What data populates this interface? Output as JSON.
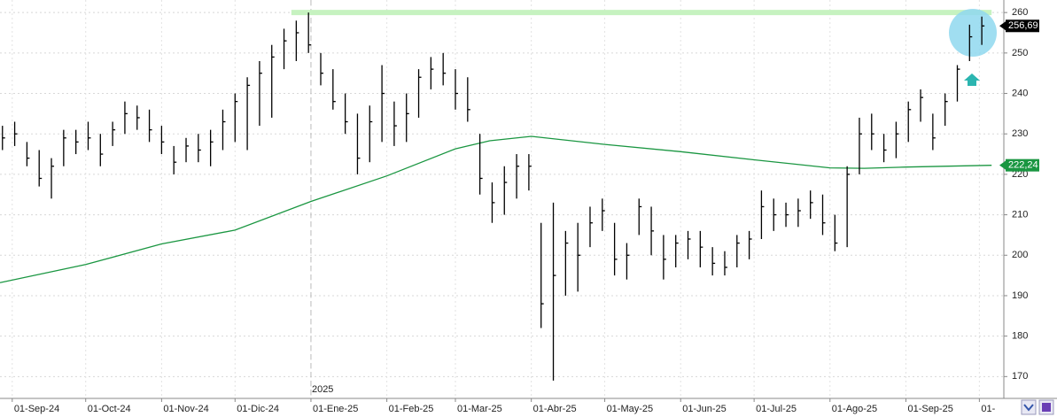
{
  "chart_data": {
    "type": "ohlc",
    "x": [
      "2024-08-28",
      "2024-09-02",
      "2024-09-07",
      "2024-09-12",
      "2024-09-17",
      "2024-09-22",
      "2024-09-27",
      "2024-10-02",
      "2024-10-07",
      "2024-10-12",
      "2024-10-17",
      "2024-10-22",
      "2024-10-27",
      "2024-11-01",
      "2024-11-06",
      "2024-11-11",
      "2024-11-16",
      "2024-11-21",
      "2024-11-26",
      "2024-12-01",
      "2024-12-06",
      "2024-12-11",
      "2024-12-16",
      "2024-12-21",
      "2024-12-26",
      "2024-12-31",
      "2025-01-05",
      "2025-01-10",
      "2025-01-15",
      "2025-01-20",
      "2025-01-25",
      "2025-01-30",
      "2025-02-04",
      "2025-02-09",
      "2025-02-14",
      "2025-02-19",
      "2025-02-24",
      "2025-03-01",
      "2025-03-06",
      "2025-03-11",
      "2025-03-16",
      "2025-03-21",
      "2025-03-26",
      "2025-03-31",
      "2025-04-05",
      "2025-04-10",
      "2025-04-15",
      "2025-04-20",
      "2025-04-25",
      "2025-04-30",
      "2025-05-05",
      "2025-05-10",
      "2025-05-15",
      "2025-05-20",
      "2025-05-25",
      "2025-05-30",
      "2025-06-04",
      "2025-06-09",
      "2025-06-14",
      "2025-06-19",
      "2025-06-24",
      "2025-06-29",
      "2025-07-04",
      "2025-07-09",
      "2025-07-14",
      "2025-07-19",
      "2025-07-24",
      "2025-07-29",
      "2025-08-03",
      "2025-08-08",
      "2025-08-13",
      "2025-08-18",
      "2025-08-23",
      "2025-08-28",
      "2025-09-02",
      "2025-09-07",
      "2025-09-12",
      "2025-09-17",
      "2025-09-22",
      "2025-09-27",
      "2025-10-02"
    ],
    "high": [
      232,
      233,
      228,
      226,
      224,
      231,
      231,
      233,
      230,
      233,
      238,
      237,
      236,
      232,
      227,
      229,
      230,
      231,
      236,
      240,
      244,
      248,
      252,
      256,
      258,
      260,
      250,
      246,
      240,
      235,
      237,
      247,
      238,
      240,
      246,
      249,
      250,
      246,
      244,
      230,
      218,
      222,
      225,
      225,
      208,
      213,
      206,
      208,
      212,
      214,
      208,
      203,
      214,
      212,
      205,
      205,
      206,
      206,
      202,
      201,
      205,
      206,
      216,
      214,
      213,
      214,
      216,
      215,
      210,
      222,
      234,
      235,
      230,
      233,
      238,
      241,
      235,
      240,
      247,
      257,
      259
    ],
    "low": [
      226,
      227,
      222,
      217,
      214,
      222,
      225,
      226,
      222,
      227,
      230,
      231,
      228,
      225,
      220,
      223,
      223,
      222,
      226,
      228,
      226,
      232,
      234,
      246,
      248,
      250,
      242,
      236,
      230,
      220,
      223,
      228,
      227,
      228,
      234,
      241,
      242,
      236,
      233,
      215,
      208,
      210,
      214,
      216,
      182,
      169,
      190,
      191,
      202,
      206,
      195,
      194,
      205,
      200,
      194,
      197,
      199,
      197,
      195,
      195,
      197,
      199,
      204,
      206,
      207,
      207,
      209,
      205,
      201,
      202,
      220,
      226,
      223,
      224,
      228,
      233,
      226,
      232,
      238,
      248,
      252
    ],
    "close": [
      229,
      230,
      224,
      219,
      222,
      229,
      228,
      229,
      225,
      231,
      235,
      234,
      231,
      228,
      223,
      227,
      226,
      228,
      233,
      238,
      242,
      245,
      249,
      253,
      255,
      252,
      245,
      238,
      233,
      224,
      233,
      240,
      232,
      235,
      244,
      246,
      245,
      240,
      236,
      219,
      213,
      218,
      222,
      222,
      188,
      195,
      203,
      200,
      208,
      211,
      199,
      200,
      212,
      206,
      199,
      203,
      204,
      202,
      198,
      197,
      203,
      204,
      212,
      210,
      210,
      211,
      213,
      208,
      203,
      220,
      230,
      230,
      226,
      230,
      236,
      239,
      229,
      238,
      246,
      254,
      256.69
    ],
    "color": "#000000",
    "moving_average": {
      "color": "#1a9641",
      "x": [
        "2024-08-27",
        "2024-10-01",
        "2024-11-01",
        "2024-12-01",
        "2025-01-01",
        "2025-02-01",
        "2025-03-01",
        "2025-03-15",
        "2025-04-01",
        "2025-05-01",
        "2025-06-01",
        "2025-07-01",
        "2025-08-01",
        "2025-08-15",
        "2025-09-01",
        "2025-10-06"
      ],
      "values": [
        193.2,
        197.7,
        202.8,
        206.2,
        213.3,
        219.6,
        226.3,
        228.3,
        229.4,
        227.4,
        225.6,
        223.6,
        221.6,
        221.5,
        221.8,
        222.24
      ]
    },
    "price_tag": {
      "value": 256.69,
      "label": "256,69"
    },
    "ma_tag": {
      "value": 222.24,
      "label": "222,24"
    },
    "resistance": {
      "value": 260,
      "from": "2024-12-24",
      "to": "2025-10-06",
      "color": "#c6f2c0"
    },
    "year_marker": {
      "value": "2025-01-01",
      "label": "2025"
    },
    "xlim": [
      "2024-08-27",
      "2025-10-11"
    ],
    "xticks": [
      {
        "value": "2024-09-01",
        "label": "01-Sep-24"
      },
      {
        "value": "2024-10-01",
        "label": "01-Oct-24"
      },
      {
        "value": "2024-11-01",
        "label": "01-Nov-24"
      },
      {
        "value": "2024-12-01",
        "label": "01-Dic-24"
      },
      {
        "value": "2025-01-01",
        "label": "01-Ene-25"
      },
      {
        "value": "2025-02-01",
        "label": "01-Feb-25"
      },
      {
        "value": "2025-03-01",
        "label": "01-Mar-25"
      },
      {
        "value": "2025-04-01",
        "label": "01-Abr-25"
      },
      {
        "value": "2025-05-01",
        "label": "01-May-25"
      },
      {
        "value": "2025-06-01",
        "label": "01-Jun-25"
      },
      {
        "value": "2025-07-01",
        "label": "01-Jul-25"
      },
      {
        "value": "2025-08-01",
        "label": "01-Ago-25"
      },
      {
        "value": "2025-09-01",
        "label": "01-Sep-25"
      },
      {
        "value": "2025-10-01",
        "label": "01-"
      }
    ],
    "ylim": [
      164.6,
      263.1
    ],
    "yticks": [
      170,
      180,
      190,
      200,
      210,
      220,
      230,
      240,
      250,
      260
    ],
    "grid": true
  }
}
